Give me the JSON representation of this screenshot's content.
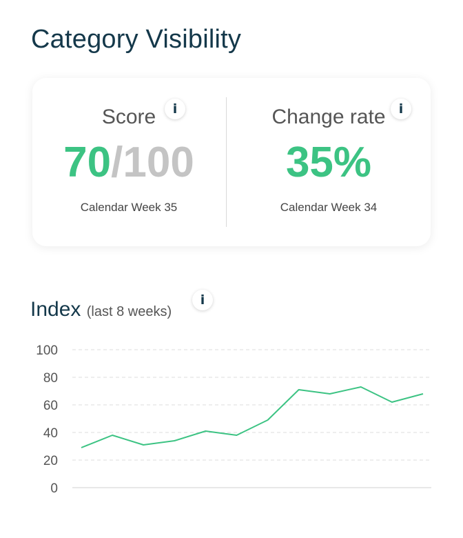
{
  "page": {
    "title": "Category Visibility"
  },
  "score": {
    "label": "Score",
    "value": "70",
    "max": "/100",
    "caption": "Calendar Week 35",
    "info_icon": "i"
  },
  "change_rate": {
    "label": "Change rate",
    "value": "35%",
    "caption": "Calendar Week 34",
    "info_icon": "i"
  },
  "index": {
    "title": "Index",
    "subtitle": "(last 8 weeks)",
    "info_icon": "i"
  },
  "colors": {
    "accent": "#3cc383",
    "title": "#14384a",
    "muted": "#c4c4c4"
  },
  "chart_data": {
    "type": "line",
    "ylim": [
      0,
      100
    ],
    "yticks": [
      "100",
      "80",
      "60",
      "40",
      "20",
      "0"
    ],
    "ytick_values": [
      100,
      80,
      60,
      40,
      20,
      0
    ],
    "grid": true,
    "values": [
      29,
      38,
      31,
      34,
      41,
      38,
      49,
      71,
      68,
      73,
      62,
      68
    ]
  }
}
